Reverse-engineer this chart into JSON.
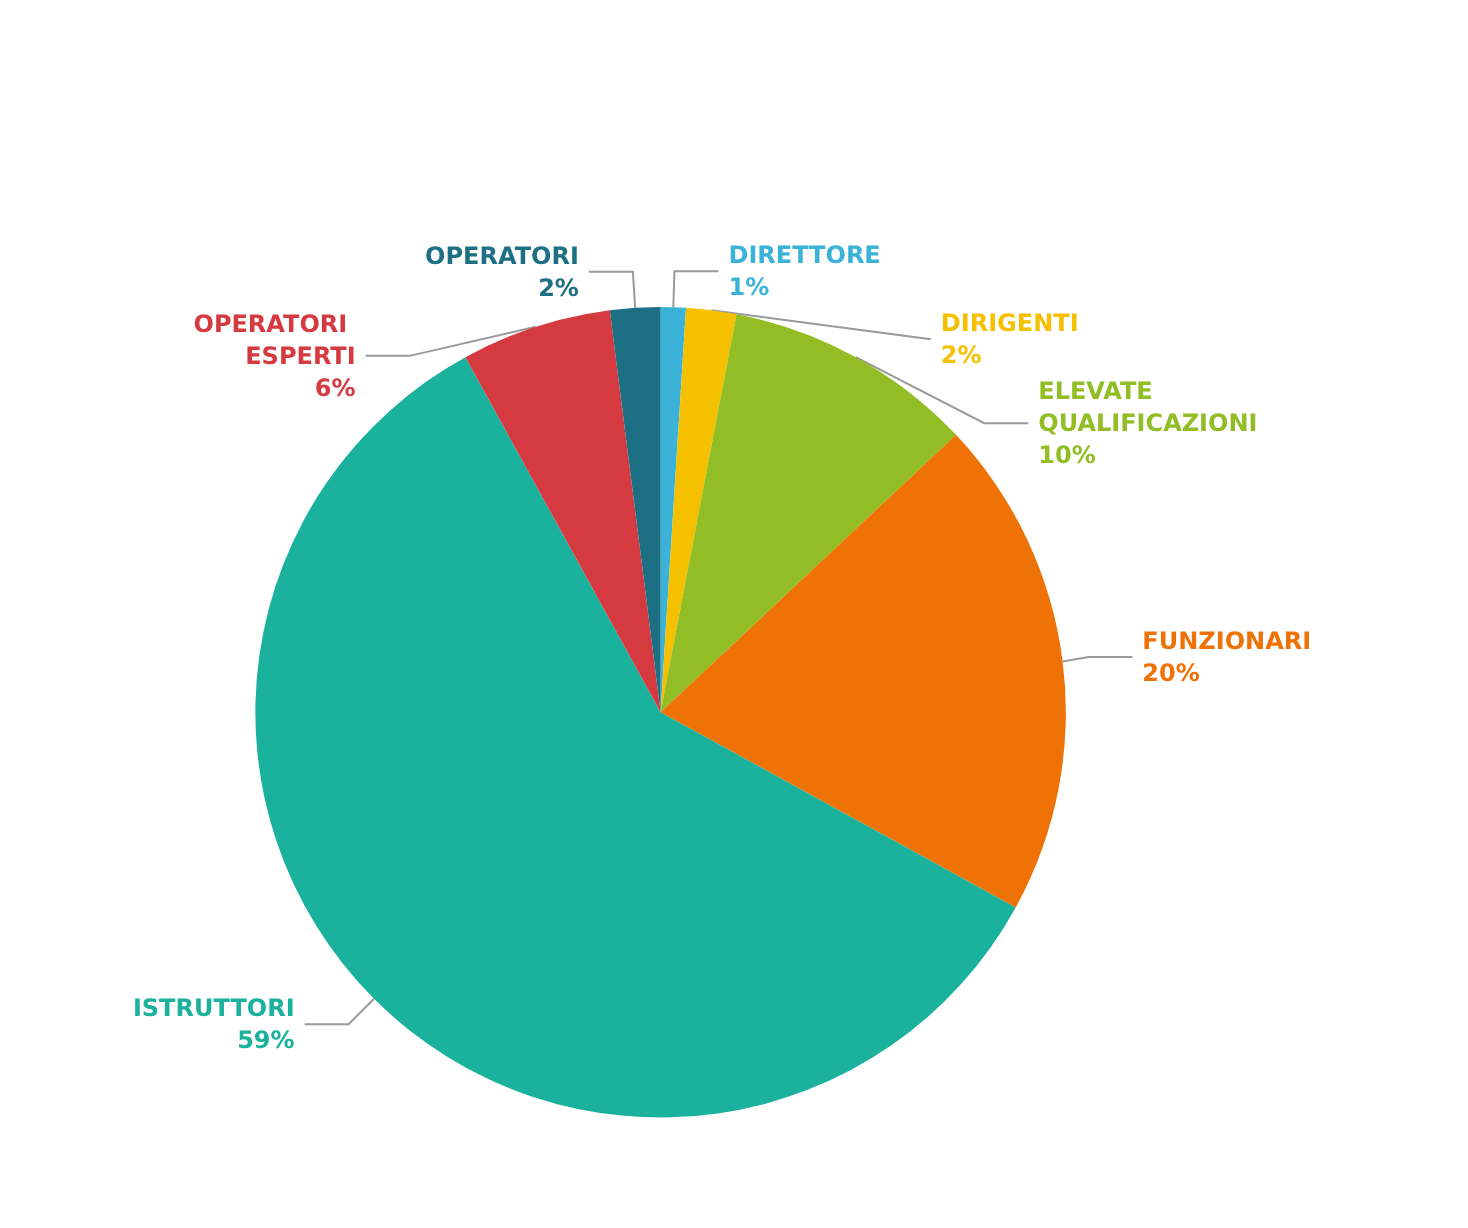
{
  "chart_data": {
    "type": "pie",
    "categories": [
      "DIRETTORE",
      "DIRIGENTI",
      "ELEVATE QUALIFICAZIONI",
      "FUNZIONARI",
      "ISTRUTTORI",
      "OPERATORI ESPERTI",
      "OPERATORI"
    ],
    "values": [
      1,
      2,
      10,
      20,
      59,
      6,
      2
    ],
    "value_labels": [
      "1%",
      "2%",
      "10%",
      "20%",
      "59%",
      "6%",
      "2%"
    ],
    "colors": [
      "#3bb3d9",
      "#f5c000",
      "#92bd25",
      "#ee7205",
      "#1ab19d",
      "#d63a41",
      "#1d6f84"
    ]
  }
}
